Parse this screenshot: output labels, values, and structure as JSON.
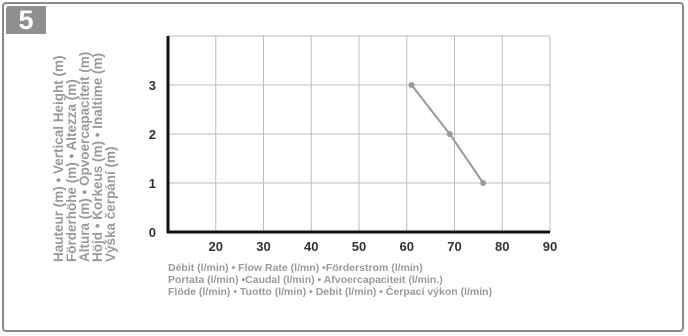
{
  "badge": "5",
  "ylabel_lines": [
    "Hauteur (m) • Vertical Height (m)",
    "Förderhöhe (m) • Altezza (m)",
    "Altura (m) • Opvoercapaciteit (m)",
    "Höjd • Korkeus (m) • Inaltime (m)",
    "Výška čerpání (m)"
  ],
  "xlabel_lines": [
    "Débit (l/min) • Flow Rate (l/mn) •Förderstrom (l/min)",
    "Portata (l/min) •Caudal (l/min) • Afvoercapaciteit (l/min.)",
    "Flöde (l/min) • Tuotto (l/min) • Debit (l/min) • Čerpací výkon (l/min)"
  ],
  "colors": {
    "line": "#9a9a9a",
    "marker": "#9a9a9a",
    "grid": "#bdbdbd",
    "axis": "#111111",
    "label": "#9a9a9a",
    "badge": "#8f8f8f"
  },
  "chart_data": {
    "type": "line",
    "title": "",
    "xlabel": "Débit (l/min) • Flow Rate (l/mn) •Förderstrom (l/min) / Portata (l/min) •Caudal (l/min) • Afvoercapaciteit (l/min.) / Flöde (l/min) • Tuotto (l/min) • Debit (l/min) • Čerpací výkon (l/min)",
    "ylabel": "Hauteur (m) • Vertical Height (m) / Förderhöhe (m) • Altezza (m) / Altura (m) • Opvoercapaciteit (m) / Höjd • Korkeus (m) • Inaltime (m) / Výška čerpání (m)",
    "xlim": [
      10,
      90
    ],
    "ylim": [
      0,
      4
    ],
    "x_ticks": [
      "20",
      "30",
      "40",
      "50",
      "60",
      "70",
      "80",
      "90"
    ],
    "y_ticks": [
      "0",
      "1",
      "2",
      "3"
    ],
    "grid": true,
    "series": [
      {
        "x": [
          61,
          69,
          76
        ],
        "y": [
          3,
          2,
          1
        ]
      }
    ]
  }
}
